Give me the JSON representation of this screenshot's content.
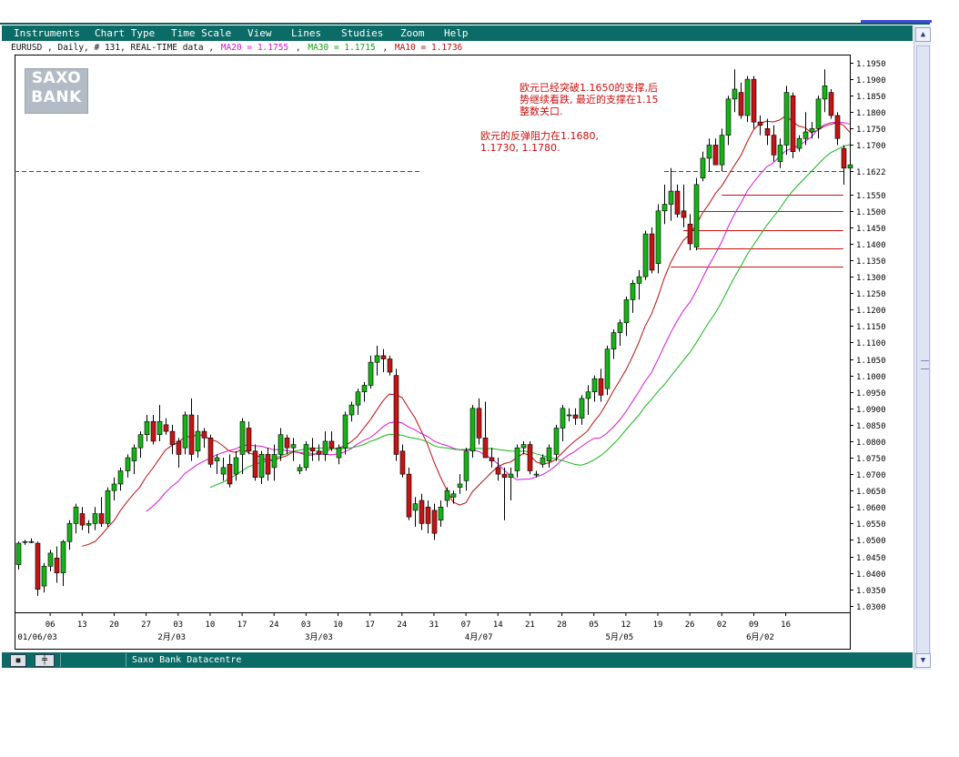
{
  "menu": [
    "Instruments",
    "Chart Type",
    "Time Scale",
    "View",
    "Lines",
    "Studies",
    "Zoom",
    "Help"
  ],
  "info": {
    "symbol_text": "EURUSD , Daily, # 131, REAL-TIME data ,",
    "ma20": "MA20 = 1.1755",
    "ma30": "MA30 = 1.1715",
    "ma10": "MA10 = 1.1736",
    "sep": ","
  },
  "logo": {
    "line1": "SAXO",
    "line2": "BANK"
  },
  "notes": {
    "note1_line1": "欧元已经突破1.1650的支撑,后",
    "note1_line2": "势继续看跌, 最近的支撑在1.15",
    "note1_line3": "整数关口.",
    "note2_line1": "欧元的反弹阻力在1.1680,",
    "note2_line2": "1.1730, 1.1780."
  },
  "status": {
    "text": "Saxo Bank Datacentre"
  },
  "colors": {
    "bar": "#0b6b66",
    "up_candle": "#16b316",
    "down_candle": "#c41414",
    "ma10": "#b81010",
    "ma20": "#d418d4",
    "ma30": "#18b318",
    "annotation": "#cc1010"
  },
  "chart_data": {
    "type": "candlestick",
    "instrument": "EURUSD",
    "y_ticks": [
      "1.1950",
      "1.1900",
      "1.1850",
      "1.1800",
      "1.1750",
      "1.1700",
      "1.1622",
      "1.1550",
      "1.1500",
      "1.1450",
      "1.1400",
      "1.1350",
      "1.1300",
      "1.1250",
      "1.1200",
      "1.1150",
      "1.1100",
      "1.1050",
      "1.1000",
      "1.0950",
      "1.0900",
      "1.0850",
      "1.0800",
      "1.0750",
      "1.0700",
      "1.0650",
      "1.0600",
      "1.0550",
      "1.0500",
      "1.0450",
      "1.0400",
      "1.0350",
      "1.0300"
    ],
    "ylim": [
      1.028,
      1.1975
    ],
    "x_ticks": [
      "06",
      "13",
      "20",
      "27",
      "03",
      "10",
      "17",
      "24",
      "03",
      "10",
      "17",
      "24",
      "31",
      "07",
      "14",
      "21",
      "28",
      "05",
      "12",
      "19",
      "26",
      "02",
      "09",
      "16"
    ],
    "x_month_labels": [
      "01/06/03",
      "2月/03",
      "3月/03",
      "4月/07",
      "5月/05",
      "6月/02"
    ],
    "ohlc": [
      [
        1.0425,
        1.0495,
        1.041,
        1.049
      ],
      [
        1.0495,
        1.05,
        1.0485,
        1.0495
      ],
      [
        1.0495,
        1.0505,
        1.049,
        1.0495
      ],
      [
        1.049,
        1.0495,
        1.033,
        1.035
      ],
      [
        1.036,
        1.043,
        1.034,
        1.042
      ],
      [
        1.042,
        1.047,
        1.0405,
        1.046
      ],
      [
        1.0445,
        1.048,
        1.037,
        1.04
      ],
      [
        1.04,
        1.05,
        1.036,
        1.0495
      ],
      [
        1.0495,
        1.056,
        1.047,
        1.055
      ],
      [
        1.055,
        1.061,
        1.052,
        1.06
      ],
      [
        1.058,
        1.06,
        1.053,
        1.0545
      ],
      [
        1.0545,
        1.056,
        1.052,
        1.055
      ],
      [
        1.055,
        1.06,
        1.053,
        1.058
      ],
      [
        1.058,
        1.063,
        1.054,
        1.055
      ],
      [
        1.055,
        1.066,
        1.054,
        1.065
      ],
      [
        1.065,
        1.069,
        1.062,
        1.067
      ],
      [
        1.067,
        1.072,
        1.065,
        1.071
      ],
      [
        1.071,
        1.076,
        1.069,
        1.075
      ],
      [
        1.074,
        1.079,
        1.07,
        1.078
      ],
      [
        1.078,
        1.083,
        1.075,
        1.082
      ],
      [
        1.082,
        1.088,
        1.08,
        1.086
      ],
      [
        1.086,
        1.088,
        1.079,
        1.08
      ],
      [
        1.082,
        1.091,
        1.08,
        1.086
      ],
      [
        1.085,
        1.087,
        1.082,
        1.083
      ],
      [
        1.083,
        1.085,
        1.076,
        1.079
      ],
      [
        1.08,
        1.081,
        1.072,
        1.076
      ],
      [
        1.078,
        1.089,
        1.076,
        1.088
      ],
      [
        1.088,
        1.093,
        1.074,
        1.076
      ],
      [
        1.077,
        1.088,
        1.075,
        1.083
      ],
      [
        1.083,
        1.084,
        1.078,
        1.081
      ],
      [
        1.081,
        1.082,
        1.072,
        1.073
      ],
      [
        1.074,
        1.076,
        1.07,
        1.075
      ],
      [
        1.07,
        1.075,
        1.068,
        1.072
      ],
      [
        1.073,
        1.076,
        1.066,
        1.067
      ],
      [
        1.07,
        1.077,
        1.068,
        1.075
      ],
      [
        1.076,
        1.087,
        1.07,
        1.086
      ],
      [
        1.084,
        1.086,
        1.076,
        1.077
      ],
      [
        1.077,
        1.079,
        1.068,
        1.069
      ],
      [
        1.069,
        1.077,
        1.067,
        1.076
      ],
      [
        1.076,
        1.078,
        1.068,
        1.07
      ],
      [
        1.072,
        1.079,
        1.068,
        1.076
      ],
      [
        1.076,
        1.084,
        1.074,
        1.082
      ],
      [
        1.081,
        1.082,
        1.076,
        1.078
      ],
      [
        1.078,
        1.081,
        1.074,
        1.079
      ],
      [
        1.071,
        1.073,
        1.07,
        1.072
      ],
      [
        1.072,
        1.08,
        1.071,
        1.079
      ],
      [
        1.078,
        1.081,
        1.074,
        1.077
      ],
      [
        1.077,
        1.079,
        1.074,
        1.076
      ],
      [
        1.076,
        1.083,
        1.074,
        1.08
      ],
      [
        1.08,
        1.083,
        1.077,
        1.078
      ],
      [
        1.075,
        1.079,
        1.073,
        1.078
      ],
      [
        1.078,
        1.089,
        1.076,
        1.088
      ],
      [
        1.088,
        1.092,
        1.086,
        1.091
      ],
      [
        1.091,
        1.096,
        1.088,
        1.095
      ],
      [
        1.095,
        1.098,
        1.092,
        1.097
      ],
      [
        1.097,
        1.106,
        1.096,
        1.104
      ],
      [
        1.104,
        1.109,
        1.1,
        1.106
      ],
      [
        1.106,
        1.108,
        1.101,
        1.105
      ],
      [
        1.105,
        1.106,
        1.1,
        1.101
      ],
      [
        1.1,
        1.102,
        1.074,
        1.076
      ],
      [
        1.077,
        1.079,
        1.069,
        1.07
      ],
      [
        1.07,
        1.072,
        1.056,
        1.057
      ],
      [
        1.059,
        1.063,
        1.054,
        1.061
      ],
      [
        1.062,
        1.064,
        1.053,
        1.055
      ],
      [
        1.06,
        1.062,
        1.052,
        1.055
      ],
      [
        1.059,
        1.061,
        1.05,
        1.052
      ],
      [
        1.056,
        1.062,
        1.054,
        1.06
      ],
      [
        1.062,
        1.066,
        1.06,
        1.065
      ],
      [
        1.063,
        1.065,
        1.061,
        1.064
      ],
      [
        1.066,
        1.07,
        1.064,
        1.067
      ],
      [
        1.068,
        1.078,
        1.065,
        1.077
      ],
      [
        1.077,
        1.091,
        1.075,
        1.09
      ],
      [
        1.09,
        1.093,
        1.079,
        1.081
      ],
      [
        1.081,
        1.092,
        1.076,
        1.075
      ],
      [
        1.075,
        1.078,
        1.072,
        1.074
      ],
      [
        1.072,
        1.075,
        1.068,
        1.07
      ],
      [
        1.07,
        1.072,
        1.056,
        1.069
      ],
      [
        1.069,
        1.072,
        1.062,
        1.07
      ],
      [
        1.071,
        1.079,
        1.069,
        1.078
      ],
      [
        1.078,
        1.08,
        1.076,
        1.079
      ],
      [
        1.079,
        1.08,
        1.07,
        1.071
      ],
      [
        1.07,
        1.071,
        1.069,
        1.07
      ],
      [
        1.073,
        1.076,
        1.072,
        1.075
      ],
      [
        1.074,
        1.079,
        1.072,
        1.078
      ],
      [
        1.076,
        1.085,
        1.074,
        1.084
      ],
      [
        1.084,
        1.091,
        1.08,
        1.09
      ],
      [
        1.088,
        1.09,
        1.086,
        1.088
      ],
      [
        1.088,
        1.09,
        1.085,
        1.087
      ],
      [
        1.087,
        1.094,
        1.085,
        1.093
      ],
      [
        1.093,
        1.097,
        1.088,
        1.095
      ],
      [
        1.095,
        1.1,
        1.092,
        1.099
      ],
      [
        1.099,
        1.102,
        1.092,
        1.094
      ],
      [
        1.096,
        1.109,
        1.094,
        1.108
      ],
      [
        1.108,
        1.114,
        1.105,
        1.113
      ],
      [
        1.113,
        1.117,
        1.109,
        1.116
      ],
      [
        1.116,
        1.124,
        1.112,
        1.123
      ],
      [
        1.123,
        1.129,
        1.119,
        1.128
      ],
      [
        1.128,
        1.132,
        1.123,
        1.13
      ],
      [
        1.13,
        1.144,
        1.129,
        1.143
      ],
      [
        1.143,
        1.145,
        1.131,
        1.132
      ],
      [
        1.134,
        1.152,
        1.131,
        1.15
      ],
      [
        1.15,
        1.158,
        1.146,
        1.152
      ],
      [
        1.152,
        1.163,
        1.147,
        1.156
      ],
      [
        1.156,
        1.158,
        1.148,
        1.149
      ],
      [
        1.15,
        1.158,
        1.145,
        1.148
      ],
      [
        1.146,
        1.149,
        1.138,
        1.14
      ],
      [
        1.139,
        1.16,
        1.138,
        1.158
      ],
      [
        1.16,
        1.168,
        1.159,
        1.166
      ],
      [
        1.166,
        1.172,
        1.162,
        1.17
      ],
      [
        1.17,
        1.172,
        1.164,
        1.164
      ],
      [
        1.164,
        1.175,
        1.162,
        1.173
      ],
      [
        1.173,
        1.185,
        1.17,
        1.184
      ],
      [
        1.184,
        1.193,
        1.18,
        1.187
      ],
      [
        1.186,
        1.189,
        1.178,
        1.179
      ],
      [
        1.179,
        1.191,
        1.177,
        1.19
      ],
      [
        1.19,
        1.191,
        1.175,
        1.177
      ],
      [
        1.177,
        1.179,
        1.173,
        1.176
      ],
      [
        1.175,
        1.178,
        1.17,
        1.173
      ],
      [
        1.173,
        1.176,
        1.165,
        1.167
      ],
      [
        1.165,
        1.172,
        1.163,
        1.17
      ],
      [
        1.17,
        1.188,
        1.167,
        1.186
      ],
      [
        1.185,
        1.186,
        1.166,
        1.168
      ],
      [
        1.169,
        1.173,
        1.168,
        1.172
      ],
      [
        1.172,
        1.18,
        1.17,
        1.174
      ],
      [
        1.174,
        1.177,
        1.172,
        1.175
      ],
      [
        1.175,
        1.185,
        1.172,
        1.184
      ],
      [
        1.184,
        1.193,
        1.18,
        1.188
      ],
      [
        1.186,
        1.187,
        1.178,
        1.179
      ],
      [
        1.179,
        1.18,
        1.17,
        1.172
      ],
      [
        1.169,
        1.17,
        1.158,
        1.163
      ],
      [
        1.163,
        1.165,
        1.162,
        1.164
      ]
    ],
    "moving_averages": [
      {
        "name": "MA10",
        "color": "#b81010",
        "start_index": 10
      },
      {
        "name": "MA20",
        "color": "#d418d4",
        "start_index": 20
      },
      {
        "name": "MA30",
        "color": "#18b318",
        "start_index": 30
      }
    ],
    "horizontal_lines": [
      {
        "value": 1.1622,
        "style": "dashed",
        "color": "#cc1010",
        "x_from_index": -2,
        "x_to_index": 63
      },
      {
        "value": 1.1622,
        "style": "dashed",
        "color": "#cc1010",
        "x_from_index": 101,
        "x_to_index": 129
      },
      {
        "value": 1.155,
        "style": "solid",
        "color": "#cc1010",
        "x_from_index": 110,
        "x_to_index": 129
      },
      {
        "value": 1.15,
        "style": "solid",
        "color": "#cc1010",
        "x_from_index": 106,
        "x_to_index": 129
      },
      {
        "value": 1.144,
        "style": "solid",
        "color": "#cc1010",
        "x_from_index": 104,
        "x_to_index": 129
      },
      {
        "value": 1.1385,
        "style": "solid",
        "color": "#cc1010",
        "x_from_index": 106,
        "x_to_index": 129
      },
      {
        "value": 1.133,
        "style": "solid",
        "color": "#cc1010",
        "x_from_index": 102,
        "x_to_index": 129
      }
    ]
  }
}
